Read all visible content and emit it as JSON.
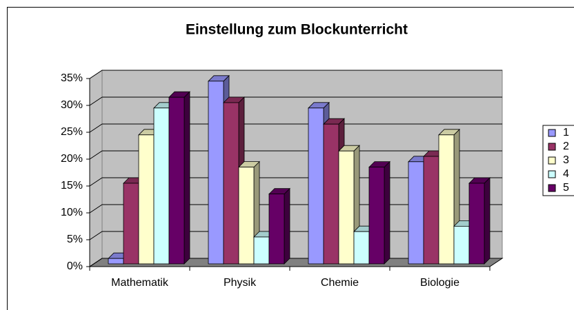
{
  "chart_data": {
    "type": "bar3d",
    "title": "Einstellung zum Blockunterricht",
    "categories": [
      "Mathematik",
      "Physik",
      "Chemie",
      "Biologie"
    ],
    "series": [
      {
        "name": "1",
        "color": "#9999ff",
        "values": [
          1,
          34,
          29,
          19
        ]
      },
      {
        "name": "2",
        "color": "#993366",
        "values": [
          15,
          30,
          26,
          20
        ]
      },
      {
        "name": "3",
        "color": "#ffffcc",
        "values": [
          24,
          18,
          21,
          24
        ]
      },
      {
        "name": "4",
        "color": "#ccffff",
        "values": [
          29,
          5,
          6,
          7
        ]
      },
      {
        "name": "5",
        "color": "#660066",
        "values": [
          31,
          13,
          18,
          15
        ]
      }
    ],
    "ylim": [
      0,
      35
    ],
    "yticks": [
      {
        "value": 0,
        "label": "0%"
      },
      {
        "value": 5,
        "label": "5%"
      },
      {
        "value": 10,
        "label": "10%"
      },
      {
        "value": 15,
        "label": "15%"
      },
      {
        "value": 20,
        "label": "20%"
      },
      {
        "value": 25,
        "label": "25%"
      },
      {
        "value": 30,
        "label": "30%"
      },
      {
        "value": 35,
        "label": "35%"
      }
    ],
    "grid": true,
    "legend": "right"
  }
}
